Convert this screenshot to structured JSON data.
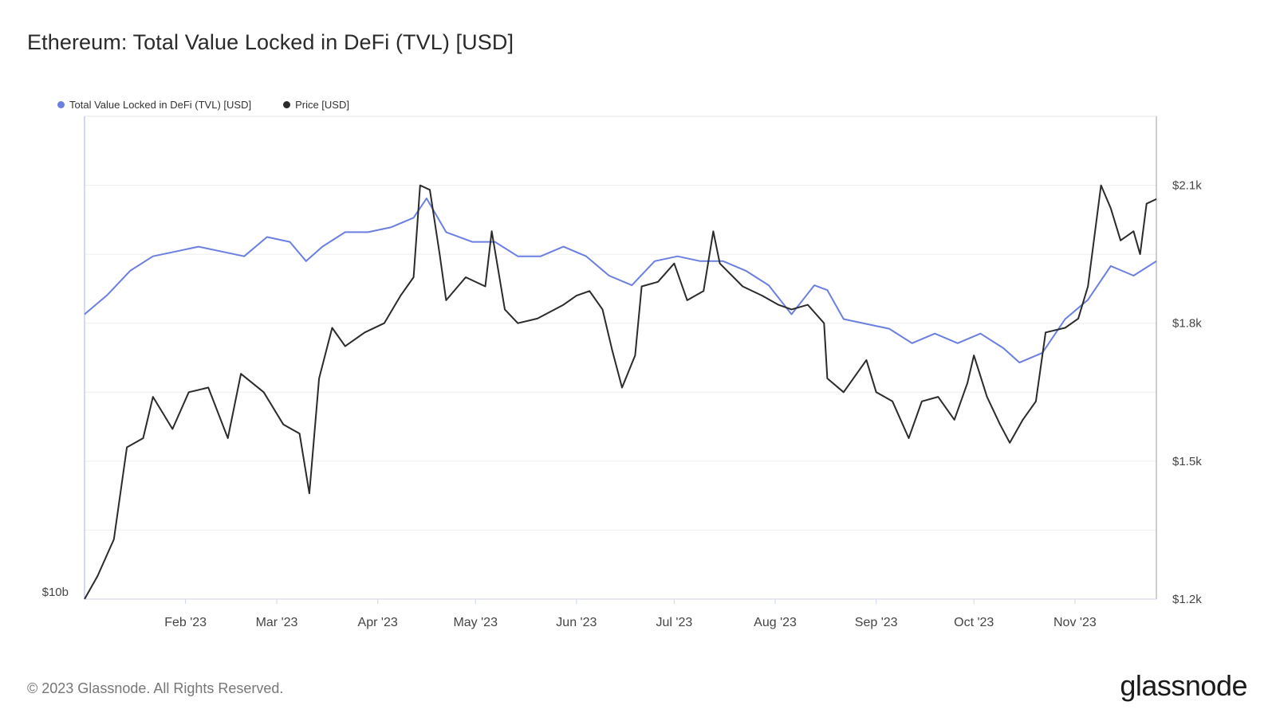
{
  "title": "Ethereum: Total Value Locked in DeFi (TVL) [USD]",
  "footer": "© 2023 Glassnode. All Rights Reserved.",
  "brand": "glassnode",
  "colors": {
    "tvl": "#6b7fe0",
    "price": "#2b2b2b",
    "grid": "#eeeeee",
    "axis": "#aab3e8"
  },
  "chart_data": {
    "type": "line",
    "title": "Ethereum: Total Value Locked in DeFi (TVL) [USD]",
    "x_start": "2023-01-01",
    "x_end": "2023-11-26",
    "x_ticks": [
      "Feb '23",
      "Mar '23",
      "Apr '23",
      "May '23",
      "Jun '23",
      "Jul '23",
      "Aug '23",
      "Sep '23",
      "Oct '23",
      "Nov '23"
    ],
    "x_tick_dates": [
      "2023-02-01",
      "2023-03-01",
      "2023-04-01",
      "2023-05-01",
      "2023-06-01",
      "2023-07-01",
      "2023-08-01",
      "2023-09-01",
      "2023-10-01",
      "2023-11-01"
    ],
    "left_axis": {
      "ticks": [
        "$10b"
      ]
    },
    "right_axis": {
      "ticks": [
        "$1.2k",
        "$1.5k",
        "$1.8k",
        "$2.1k"
      ],
      "tick_values": [
        1200,
        1500,
        1800,
        2100
      ],
      "ylim": [
        1200,
        2250
      ]
    },
    "legend_position": "top-left",
    "grid": true,
    "series": [
      {
        "name": "Total Value Locked in DeFi (TVL) [USD]",
        "axis": "left",
        "note": "relative level; left axis only labels $10b at bottom",
        "points": [
          [
            "2023-01-01",
            0.59
          ],
          [
            "2023-01-08",
            0.63
          ],
          [
            "2023-01-15",
            0.68
          ],
          [
            "2023-01-22",
            0.71
          ],
          [
            "2023-01-29",
            0.72
          ],
          [
            "2023-02-05",
            0.73
          ],
          [
            "2023-02-12",
            0.72
          ],
          [
            "2023-02-19",
            0.71
          ],
          [
            "2023-02-26",
            0.75
          ],
          [
            "2023-03-05",
            0.74
          ],
          [
            "2023-03-10",
            0.7
          ],
          [
            "2023-03-15",
            0.73
          ],
          [
            "2023-03-22",
            0.76
          ],
          [
            "2023-03-29",
            0.76
          ],
          [
            "2023-04-05",
            0.77
          ],
          [
            "2023-04-12",
            0.79
          ],
          [
            "2023-04-16",
            0.83
          ],
          [
            "2023-04-22",
            0.76
          ],
          [
            "2023-04-30",
            0.74
          ],
          [
            "2023-05-07",
            0.74
          ],
          [
            "2023-05-14",
            0.71
          ],
          [
            "2023-05-21",
            0.71
          ],
          [
            "2023-05-28",
            0.73
          ],
          [
            "2023-06-04",
            0.71
          ],
          [
            "2023-06-11",
            0.67
          ],
          [
            "2023-06-18",
            0.65
          ],
          [
            "2023-06-25",
            0.7
          ],
          [
            "2023-07-02",
            0.71
          ],
          [
            "2023-07-09",
            0.7
          ],
          [
            "2023-07-16",
            0.7
          ],
          [
            "2023-07-23",
            0.68
          ],
          [
            "2023-07-30",
            0.65
          ],
          [
            "2023-08-06",
            0.59
          ],
          [
            "2023-08-13",
            0.65
          ],
          [
            "2023-08-17",
            0.64
          ],
          [
            "2023-08-22",
            0.58
          ],
          [
            "2023-08-29",
            0.57
          ],
          [
            "2023-09-05",
            0.56
          ],
          [
            "2023-09-12",
            0.53
          ],
          [
            "2023-09-19",
            0.55
          ],
          [
            "2023-09-26",
            0.53
          ],
          [
            "2023-10-03",
            0.55
          ],
          [
            "2023-10-10",
            0.52
          ],
          [
            "2023-10-15",
            0.49
          ],
          [
            "2023-10-22",
            0.51
          ],
          [
            "2023-10-29",
            0.58
          ],
          [
            "2023-11-05",
            0.62
          ],
          [
            "2023-11-12",
            0.69
          ],
          [
            "2023-11-19",
            0.67
          ],
          [
            "2023-11-26",
            0.7
          ]
        ]
      },
      {
        "name": "Price [USD]",
        "axis": "right",
        "points": [
          [
            "2023-01-01",
            1200
          ],
          [
            "2023-01-05",
            1250
          ],
          [
            "2023-01-10",
            1330
          ],
          [
            "2023-01-14",
            1530
          ],
          [
            "2023-01-19",
            1550
          ],
          [
            "2023-01-22",
            1640
          ],
          [
            "2023-01-28",
            1570
          ],
          [
            "2023-02-02",
            1650
          ],
          [
            "2023-02-08",
            1660
          ],
          [
            "2023-02-14",
            1550
          ],
          [
            "2023-02-18",
            1690
          ],
          [
            "2023-02-25",
            1650
          ],
          [
            "2023-03-03",
            1580
          ],
          [
            "2023-03-08",
            1560
          ],
          [
            "2023-03-11",
            1430
          ],
          [
            "2023-03-14",
            1680
          ],
          [
            "2023-03-18",
            1790
          ],
          [
            "2023-03-22",
            1750
          ],
          [
            "2023-03-28",
            1780
          ],
          [
            "2023-04-03",
            1800
          ],
          [
            "2023-04-08",
            1860
          ],
          [
            "2023-04-12",
            1900
          ],
          [
            "2023-04-14",
            2100
          ],
          [
            "2023-04-17",
            2090
          ],
          [
            "2023-04-20",
            1950
          ],
          [
            "2023-04-22",
            1850
          ],
          [
            "2023-04-28",
            1900
          ],
          [
            "2023-05-04",
            1880
          ],
          [
            "2023-05-06",
            2000
          ],
          [
            "2023-05-10",
            1830
          ],
          [
            "2023-05-14",
            1800
          ],
          [
            "2023-05-20",
            1810
          ],
          [
            "2023-05-28",
            1840
          ],
          [
            "2023-06-01",
            1860
          ],
          [
            "2023-06-05",
            1870
          ],
          [
            "2023-06-09",
            1830
          ],
          [
            "2023-06-12",
            1740
          ],
          [
            "2023-06-15",
            1660
          ],
          [
            "2023-06-19",
            1730
          ],
          [
            "2023-06-21",
            1880
          ],
          [
            "2023-06-26",
            1890
          ],
          [
            "2023-07-01",
            1930
          ],
          [
            "2023-07-05",
            1850
          ],
          [
            "2023-07-10",
            1870
          ],
          [
            "2023-07-13",
            2000
          ],
          [
            "2023-07-15",
            1930
          ],
          [
            "2023-07-22",
            1880
          ],
          [
            "2023-07-28",
            1860
          ],
          [
            "2023-08-02",
            1840
          ],
          [
            "2023-08-06",
            1830
          ],
          [
            "2023-08-11",
            1840
          ],
          [
            "2023-08-16",
            1800
          ],
          [
            "2023-08-17",
            1680
          ],
          [
            "2023-08-22",
            1650
          ],
          [
            "2023-08-29",
            1720
          ],
          [
            "2023-09-01",
            1650
          ],
          [
            "2023-09-06",
            1630
          ],
          [
            "2023-09-11",
            1550
          ],
          [
            "2023-09-15",
            1630
          ],
          [
            "2023-09-20",
            1640
          ],
          [
            "2023-09-25",
            1590
          ],
          [
            "2023-09-29",
            1670
          ],
          [
            "2023-10-01",
            1730
          ],
          [
            "2023-10-05",
            1640
          ],
          [
            "2023-10-09",
            1580
          ],
          [
            "2023-10-12",
            1540
          ],
          [
            "2023-10-16",
            1590
          ],
          [
            "2023-10-20",
            1630
          ],
          [
            "2023-10-23",
            1780
          ],
          [
            "2023-10-29",
            1790
          ],
          [
            "2023-11-02",
            1810
          ],
          [
            "2023-11-05",
            1880
          ],
          [
            "2023-11-09",
            2100
          ],
          [
            "2023-11-12",
            2050
          ],
          [
            "2023-11-15",
            1980
          ],
          [
            "2023-11-19",
            2000
          ],
          [
            "2023-11-21",
            1950
          ],
          [
            "2023-11-23",
            2060
          ],
          [
            "2023-11-26",
            2070
          ]
        ]
      }
    ]
  }
}
